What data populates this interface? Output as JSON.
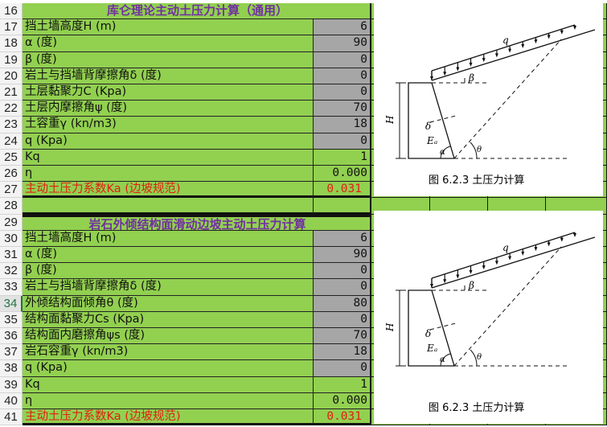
{
  "colors": {
    "cell_green": "#92d050",
    "input_gray": "#a6a6a6",
    "title_purple": "#7030a0",
    "result_red": "#e02010"
  },
  "rows": [
    {
      "num": "16",
      "label": "库仑理论主动土压力计算（通用）",
      "value": "",
      "kind": "title"
    },
    {
      "num": "17",
      "label": "挡土墙高度H (m)",
      "value": "6",
      "kind": "input"
    },
    {
      "num": "18",
      "label": "α (度)",
      "value": "90",
      "kind": "input"
    },
    {
      "num": "19",
      "label": "β (度)",
      "value": "0",
      "kind": "input"
    },
    {
      "num": "20",
      "label": "岩土与挡墙背摩擦角δ (度)",
      "value": "0",
      "kind": "input"
    },
    {
      "num": "21",
      "label": "土层黏聚力C (Kpa)",
      "value": "0",
      "kind": "input"
    },
    {
      "num": "22",
      "label": "土层内摩擦角ψ (度)",
      "value": "70",
      "kind": "input"
    },
    {
      "num": "23",
      "label": "土容重γ (kn/m3)",
      "value": "18",
      "kind": "input"
    },
    {
      "num": "24",
      "label": "q (Kpa)",
      "value": "0",
      "kind": "input"
    },
    {
      "num": "25",
      "label": " Kq",
      "value": "1",
      "kind": "calc"
    },
    {
      "num": "26",
      "label": "η",
      "value": "0.000",
      "kind": "calc"
    },
    {
      "num": "27",
      "label": "主动土压力系数Ka (边坡规范)",
      "value": "0.031",
      "kind": "result"
    },
    {
      "num": "28",
      "label": "",
      "value": "",
      "kind": "blank"
    },
    {
      "num": "29",
      "label": "岩石外倾结构面滑动边坡主动土压力计算",
      "value": "",
      "kind": "title"
    },
    {
      "num": "30",
      "label": "挡土墙高度H (m)",
      "value": "6",
      "kind": "input"
    },
    {
      "num": "31",
      "label": "α (度)",
      "value": "90",
      "kind": "input"
    },
    {
      "num": "32",
      "label": "β (度)",
      "value": "0",
      "kind": "input"
    },
    {
      "num": "33",
      "label": "岩土与挡墙背摩擦角δ (度)",
      "value": "0",
      "kind": "input"
    },
    {
      "num": "34",
      "label": "外倾结构面倾角θ (度)",
      "value": "80",
      "kind": "input",
      "selected": true,
      "note": true
    },
    {
      "num": "35",
      "label": "结构面黏聚力Cs (Kpa)",
      "value": "0",
      "kind": "input"
    },
    {
      "num": "36",
      "label": "结构面内磨擦角ψs (度)",
      "value": "70",
      "kind": "input"
    },
    {
      "num": "37",
      "label": "岩石容重γ (kn/m3)",
      "value": "18",
      "kind": "input"
    },
    {
      "num": "38",
      "label": "q (Kpa)",
      "value": "0",
      "kind": "input"
    },
    {
      "num": "39",
      "label": " Kq",
      "value": "1",
      "kind": "calc"
    },
    {
      "num": "40",
      "label": "η",
      "value": "0.000",
      "kind": "calc"
    },
    {
      "num": "41",
      "label": "主动土压力系数Ka (边坡规范)",
      "value": "0.031",
      "kind": "result"
    }
  ],
  "figure": {
    "caption": "图 6.2.3   土压力计算",
    "labels": {
      "q": "q",
      "beta": "β",
      "H": "H",
      "delta": "δ",
      "Ea": "Eₐ",
      "alpha": "α",
      "theta": "θ"
    }
  }
}
